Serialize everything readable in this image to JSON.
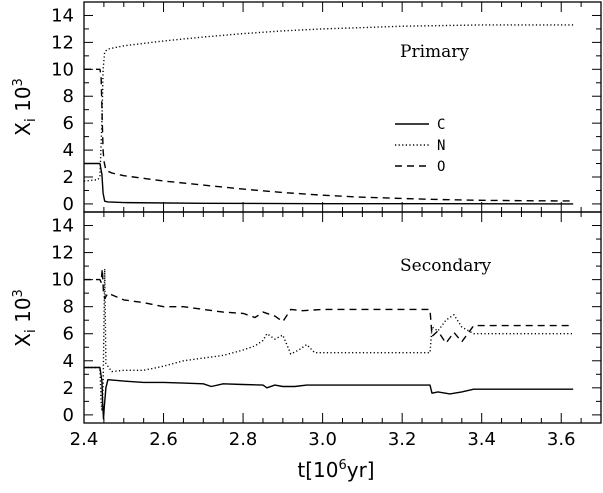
{
  "chart_data": [
    {
      "type": "line",
      "panel_label": "Primary",
      "ylabel": "X_i 10^3",
      "xlim": [
        2.4,
        3.7
      ],
      "ylim": [
        -0.6,
        15.0
      ],
      "x_ticks": [
        2.4,
        2.6,
        2.8,
        3.0,
        3.2,
        3.4,
        3.6
      ],
      "y_ticks": [
        0,
        2,
        4,
        6,
        8,
        10,
        12,
        14
      ],
      "y_tick_labels": [
        "0",
        "2",
        "4",
        "6",
        "8",
        "10",
        "12",
        "14"
      ],
      "legend": {
        "position": "right-center",
        "entries": [
          {
            "label": "C",
            "style": "solid"
          },
          {
            "label": "N",
            "style": "dotted"
          },
          {
            "label": "O",
            "style": "dashed"
          }
        ]
      },
      "series": [
        {
          "name": "C",
          "style": "solid",
          "points": [
            [
              2.4,
              3.0
            ],
            [
              2.435,
              3.0
            ],
            [
              2.44,
              3.0
            ],
            [
              2.445,
              2.2
            ],
            [
              2.448,
              0.8
            ],
            [
              2.452,
              0.2
            ],
            [
              2.46,
              0.15
            ],
            [
              2.5,
              0.1
            ],
            [
              2.7,
              0.05
            ],
            [
              3.0,
              0.02
            ],
            [
              3.3,
              0.02
            ],
            [
              3.63,
              0.0
            ]
          ]
        },
        {
          "name": "N",
          "style": "dotted",
          "points": [
            [
              2.4,
              1.7
            ],
            [
              2.435,
              1.8
            ],
            [
              2.44,
              2.0
            ],
            [
              2.445,
              6.0
            ],
            [
              2.448,
              10.0
            ],
            [
              2.452,
              11.3
            ],
            [
              2.46,
              11.5
            ],
            [
              2.5,
              11.75
            ],
            [
              2.6,
              12.1
            ],
            [
              2.7,
              12.4
            ],
            [
              2.8,
              12.65
            ],
            [
              2.9,
              12.85
            ],
            [
              3.0,
              13.0
            ],
            [
              3.1,
              13.1
            ],
            [
              3.2,
              13.2
            ],
            [
              3.3,
              13.25
            ],
            [
              3.4,
              13.3
            ],
            [
              3.5,
              13.3
            ],
            [
              3.63,
              13.3
            ]
          ]
        },
        {
          "name": "O",
          "style": "dashed",
          "points": [
            [
              2.4,
              10.0
            ],
            [
              2.44,
              10.0
            ],
            [
              2.443,
              9.5
            ],
            [
              2.446,
              6.0
            ],
            [
              2.448,
              4.0
            ],
            [
              2.45,
              3.2
            ],
            [
              2.455,
              2.5
            ],
            [
              2.47,
              2.3
            ],
            [
              2.5,
              2.1
            ],
            [
              2.6,
              1.7
            ],
            [
              2.7,
              1.4
            ],
            [
              2.8,
              1.1
            ],
            [
              2.9,
              0.85
            ],
            [
              3.0,
              0.65
            ],
            [
              3.1,
              0.5
            ],
            [
              3.2,
              0.4
            ],
            [
              3.3,
              0.32
            ],
            [
              3.4,
              0.27
            ],
            [
              3.5,
              0.24
            ],
            [
              3.63,
              0.22
            ]
          ]
        }
      ]
    },
    {
      "type": "line",
      "panel_label": "Secondary",
      "ylabel": "X_i 10^3",
      "xlabel": "t[10^6yr]",
      "xlim": [
        2.4,
        3.7
      ],
      "ylim": [
        -0.6,
        15.0
      ],
      "x_ticks": [
        2.4,
        2.6,
        2.8,
        3.0,
        3.2,
        3.4,
        3.6
      ],
      "x_tick_labels": [
        "2.4",
        "2.6",
        "2.8",
        "3.0",
        "3.2",
        "3.4",
        "3.6"
      ],
      "y_ticks": [
        0,
        2,
        4,
        6,
        8,
        10,
        12,
        14
      ],
      "y_tick_labels": [
        "0",
        "2",
        "4",
        "6",
        "8",
        "10",
        "12",
        "14"
      ],
      "series": [
        {
          "name": "C",
          "style": "solid",
          "points": [
            [
              2.4,
              3.5
            ],
            [
              2.44,
              3.5
            ],
            [
              2.445,
              2.5
            ],
            [
              2.447,
              0.8
            ],
            [
              2.449,
              -0.3
            ],
            [
              2.451,
              0.6
            ],
            [
              2.455,
              2.0
            ],
            [
              2.46,
              2.6
            ],
            [
              2.5,
              2.5
            ],
            [
              2.55,
              2.4
            ],
            [
              2.6,
              2.4
            ],
            [
              2.65,
              2.35
            ],
            [
              2.7,
              2.3
            ],
            [
              2.72,
              2.1
            ],
            [
              2.75,
              2.3
            ],
            [
              2.8,
              2.25
            ],
            [
              2.85,
              2.2
            ],
            [
              2.86,
              2.0
            ],
            [
              2.88,
              2.2
            ],
            [
              2.9,
              2.1
            ],
            [
              2.93,
              2.1
            ],
            [
              2.96,
              2.2
            ],
            [
              3.0,
              2.2
            ],
            [
              3.1,
              2.2
            ],
            [
              3.2,
              2.2
            ],
            [
              3.27,
              2.2
            ],
            [
              3.275,
              1.6
            ],
            [
              3.29,
              1.7
            ],
            [
              3.32,
              1.55
            ],
            [
              3.35,
              1.7
            ],
            [
              3.38,
              1.9
            ],
            [
              3.45,
              1.9
            ],
            [
              3.5,
              1.9
            ],
            [
              3.63,
              1.9
            ]
          ]
        },
        {
          "name": "N",
          "style": "dotted",
          "points": [
            [
              2.4,
              3.5
            ],
            [
              2.44,
              3.5
            ],
            [
              2.443,
              1.0
            ],
            [
              2.445,
              0.3
            ],
            [
              2.448,
              2.0
            ],
            [
              2.452,
              10.8
            ],
            [
              2.455,
              3.8
            ],
            [
              2.47,
              3.2
            ],
            [
              2.5,
              3.3
            ],
            [
              2.55,
              3.3
            ],
            [
              2.6,
              3.6
            ],
            [
              2.65,
              4.0
            ],
            [
              2.7,
              4.2
            ],
            [
              2.75,
              4.4
            ],
            [
              2.8,
              4.8
            ],
            [
              2.83,
              5.1
            ],
            [
              2.85,
              5.5
            ],
            [
              2.86,
              6.0
            ],
            [
              2.88,
              5.6
            ],
            [
              2.9,
              5.9
            ],
            [
              2.92,
              4.5
            ],
            [
              2.94,
              4.8
            ],
            [
              2.96,
              5.2
            ],
            [
              2.98,
              4.6
            ],
            [
              3.0,
              4.6
            ],
            [
              3.1,
              4.6
            ],
            [
              3.2,
              4.6
            ],
            [
              3.27,
              4.6
            ],
            [
              3.275,
              6.5
            ],
            [
              3.29,
              6.2
            ],
            [
              3.31,
              7.0
            ],
            [
              3.33,
              7.4
            ],
            [
              3.35,
              6.5
            ],
            [
              3.38,
              6.0
            ],
            [
              3.45,
              6.0
            ],
            [
              3.5,
              6.0
            ],
            [
              3.63,
              6.0
            ]
          ]
        },
        {
          "name": "O",
          "style": "dashed",
          "points": [
            [
              2.4,
              10.0
            ],
            [
              2.44,
              10.0
            ],
            [
              2.443,
              9.8
            ],
            [
              2.446,
              10.8
            ],
            [
              2.449,
              9.0
            ],
            [
              2.452,
              8.6
            ],
            [
              2.46,
              9.0
            ],
            [
              2.5,
              8.5
            ],
            [
              2.55,
              8.3
            ],
            [
              2.6,
              8.0
            ],
            [
              2.65,
              8.0
            ],
            [
              2.7,
              7.8
            ],
            [
              2.75,
              7.6
            ],
            [
              2.8,
              7.5
            ],
            [
              2.83,
              7.2
            ],
            [
              2.85,
              7.6
            ],
            [
              2.88,
              7.3
            ],
            [
              2.9,
              6.9
            ],
            [
              2.92,
              7.8
            ],
            [
              2.95,
              7.7
            ],
            [
              3.0,
              7.8
            ],
            [
              3.1,
              7.8
            ],
            [
              3.2,
              7.8
            ],
            [
              3.27,
              7.8
            ],
            [
              3.275,
              5.8
            ],
            [
              3.29,
              6.2
            ],
            [
              3.31,
              5.3
            ],
            [
              3.33,
              6.1
            ],
            [
              3.35,
              5.4
            ],
            [
              3.38,
              6.6
            ],
            [
              3.45,
              6.6
            ],
            [
              3.5,
              6.6
            ],
            [
              3.63,
              6.6
            ]
          ]
        }
      ]
    }
  ]
}
